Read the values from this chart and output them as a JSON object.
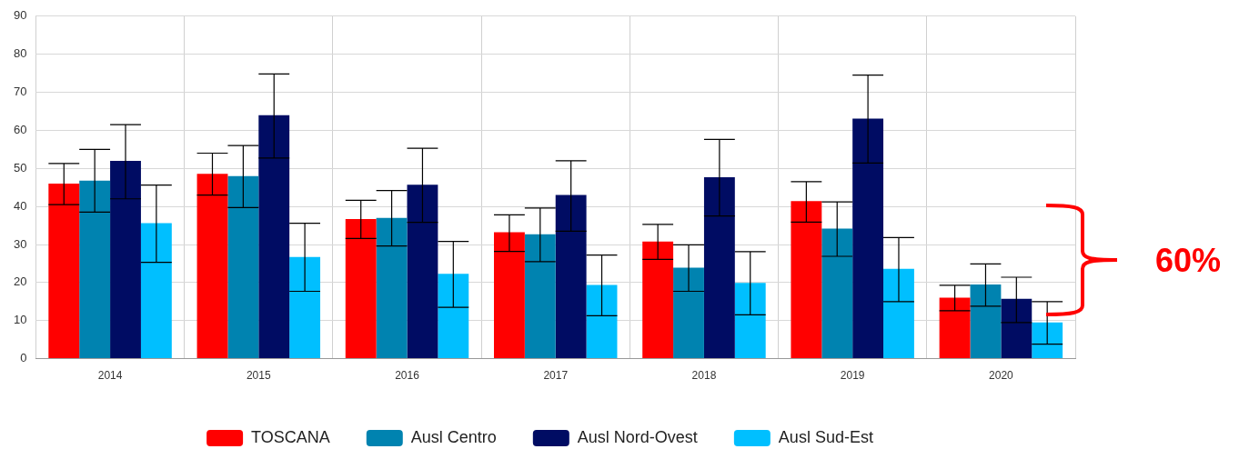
{
  "chart_data": {
    "type": "bar",
    "categories": [
      "2014",
      "2015",
      "2016",
      "2017",
      "2018",
      "2019",
      "2020"
    ],
    "series": [
      {
        "name": "TOSCANA",
        "color": "#ff0000",
        "values": [
          46,
          48.6,
          36.7,
          33.2,
          30.8,
          41.4,
          16
        ],
        "errors": [
          [
            40.5,
            51.3
          ],
          [
            43,
            54
          ],
          [
            31.6,
            41.6
          ],
          [
            28.2,
            37.8
          ],
          [
            26.1,
            35.3
          ],
          [
            35.9,
            46.5
          ],
          [
            12.6,
            19.3
          ]
        ]
      },
      {
        "name": "Ausl Centro",
        "color": "#0083b0",
        "values": [
          46.8,
          48,
          37,
          32.7,
          23.9,
          34.2,
          19.5
        ],
        "errors": [
          [
            38.5,
            55
          ],
          [
            39.7,
            56
          ],
          [
            29.6,
            44.2
          ],
          [
            25.5,
            39.6
          ],
          [
            17.7,
            29.9
          ],
          [
            26.9,
            41.2
          ],
          [
            13.8,
            24.9
          ]
        ]
      },
      {
        "name": "Ausl Nord-Ovest",
        "color": "#000c63",
        "values": [
          52,
          64,
          45.7,
          43,
          47.7,
          63.1,
          15.7
        ],
        "errors": [
          [
            42,
            61.5
          ],
          [
            52.7,
            74.8
          ],
          [
            35.8,
            55.3
          ],
          [
            33.5,
            52
          ],
          [
            37.5,
            57.6
          ],
          [
            51.4,
            74.5
          ],
          [
            9.5,
            21.4
          ]
        ]
      },
      {
        "name": "Ausl Sud-Est",
        "color": "#00bfff",
        "values": [
          35.6,
          26.7,
          22.3,
          19.4,
          19.9,
          23.6,
          9.5
        ],
        "errors": [
          [
            25.3,
            45.6
          ],
          [
            17.7,
            35.6
          ],
          [
            13.5,
            30.8
          ],
          [
            11.3,
            27.2
          ],
          [
            11.5,
            28.1
          ],
          [
            15,
            31.8
          ],
          [
            3.8,
            15
          ]
        ]
      }
    ],
    "ylim": [
      0,
      90
    ],
    "yticks": [
      0,
      10,
      20,
      30,
      40,
      50,
      60,
      70,
      80,
      90
    ],
    "grid": true,
    "legend": "bottom",
    "annotations": [
      "60%"
    ]
  }
}
